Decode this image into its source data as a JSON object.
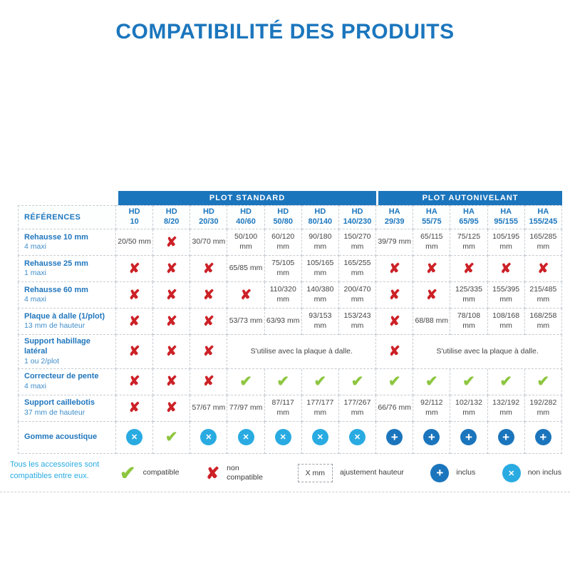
{
  "title": "COMPATIBILITÉ DES PRODUITS",
  "colors": {
    "brand_blue": "#1b75bc",
    "light_blue": "#29abe2",
    "green": "#8dc63f",
    "red": "#cc2127"
  },
  "icons": {
    "check": "✔",
    "x": "✘",
    "plus": "+",
    "circle_x": "✕"
  },
  "footnote": "Tous les accessoires sont compatibles entre eux.",
  "table": {
    "references_label": "RÉFÉRENCES",
    "groups": [
      {
        "label": "PLOT STANDARD",
        "span": 7
      },
      {
        "label": "PLOT AUTONIVELANT",
        "span": 5
      }
    ],
    "columns": [
      {
        "l1": "HD",
        "l2": "10"
      },
      {
        "l1": "HD",
        "l2": "8/20"
      },
      {
        "l1": "HD",
        "l2": "20/30"
      },
      {
        "l1": "HD",
        "l2": "40/60"
      },
      {
        "l1": "HD",
        "l2": "50/80"
      },
      {
        "l1": "HD",
        "l2": "80/140"
      },
      {
        "l1": "HD",
        "l2": "140/230"
      },
      {
        "l1": "HA",
        "l2": "29/39"
      },
      {
        "l1": "HA",
        "l2": "55/75"
      },
      {
        "l1": "HA",
        "l2": "65/95"
      },
      {
        "l1": "HA",
        "l2": "95/155"
      },
      {
        "l1": "HA",
        "l2": "155/245"
      }
    ],
    "rows": [
      {
        "name": "Rehausse 10 mm",
        "sub": "4 maxi",
        "cells": [
          {
            "type": "value",
            "text": "20/50 mm"
          },
          {
            "type": "x"
          },
          {
            "type": "value",
            "text": "30/70 mm"
          },
          {
            "type": "value",
            "text": "50/100 mm"
          },
          {
            "type": "value",
            "text": "60/120 mm"
          },
          {
            "type": "value",
            "text": "90/180 mm"
          },
          {
            "type": "value",
            "text": "150/270 mm"
          },
          {
            "type": "value",
            "text": "39/79 mm"
          },
          {
            "type": "value",
            "text": "65/115 mm"
          },
          {
            "type": "value",
            "text": "75/125 mm"
          },
          {
            "type": "value",
            "text": "105/195 mm"
          },
          {
            "type": "value",
            "text": "165/285 mm"
          }
        ]
      },
      {
        "name": "Rehausse 25 mm",
        "sub": "1 maxi",
        "cells": [
          {
            "type": "x"
          },
          {
            "type": "x"
          },
          {
            "type": "x"
          },
          {
            "type": "value",
            "text": "65/85 mm"
          },
          {
            "type": "value",
            "text": "75/105 mm"
          },
          {
            "type": "value",
            "text": "105/165 mm"
          },
          {
            "type": "value",
            "text": "165/255 mm"
          },
          {
            "type": "x"
          },
          {
            "type": "x"
          },
          {
            "type": "x"
          },
          {
            "type": "x"
          },
          {
            "type": "x"
          }
        ]
      },
      {
        "name": "Rehausse 60 mm",
        "sub": "4 maxi",
        "cells": [
          {
            "type": "x"
          },
          {
            "type": "x"
          },
          {
            "type": "x"
          },
          {
            "type": "x"
          },
          {
            "type": "value",
            "text": "110/320 mm"
          },
          {
            "type": "value",
            "text": "140/380 mm"
          },
          {
            "type": "value",
            "text": "200/470 mm"
          },
          {
            "type": "x"
          },
          {
            "type": "x"
          },
          {
            "type": "value",
            "text": "125/335 mm"
          },
          {
            "type": "value",
            "text": "155/395 mm"
          },
          {
            "type": "value",
            "text": "215/485 mm"
          }
        ]
      },
      {
        "name": "Plaque à dalle (1/plot)",
        "sub": "13 mm de hauteur",
        "cells": [
          {
            "type": "x"
          },
          {
            "type": "x"
          },
          {
            "type": "x"
          },
          {
            "type": "value",
            "text": "53/73 mm"
          },
          {
            "type": "value",
            "text": "63/93 mm"
          },
          {
            "type": "value",
            "text": "93/153 mm"
          },
          {
            "type": "value",
            "text": "153/243 mm"
          },
          {
            "type": "x"
          },
          {
            "type": "value",
            "text": "68/88 mm"
          },
          {
            "type": "value",
            "text": "78/108 mm"
          },
          {
            "type": "value",
            "text": "108/168 mm"
          },
          {
            "type": "value",
            "text": "168/258 mm"
          }
        ]
      },
      {
        "name": "Support habillage latéral",
        "sub": "1 ou 2/plot",
        "cells": [
          {
            "type": "x"
          },
          {
            "type": "x"
          },
          {
            "type": "x"
          },
          {
            "type": "span",
            "span": 4,
            "text": "S'utilise avec la plaque à dalle."
          },
          {
            "type": "x"
          },
          {
            "type": "span",
            "span": 4,
            "text": "S'utilise avec la plaque à dalle."
          }
        ]
      },
      {
        "name": "Correcteur de pente",
        "sub": "4 maxi",
        "cells": [
          {
            "type": "x"
          },
          {
            "type": "x"
          },
          {
            "type": "x"
          },
          {
            "type": "check"
          },
          {
            "type": "check"
          },
          {
            "type": "check"
          },
          {
            "type": "check"
          },
          {
            "type": "check"
          },
          {
            "type": "check"
          },
          {
            "type": "check"
          },
          {
            "type": "check"
          },
          {
            "type": "check"
          }
        ]
      },
      {
        "name": "Support caillebotis",
        "sub": "37 mm de hauteur",
        "cells": [
          {
            "type": "x"
          },
          {
            "type": "x"
          },
          {
            "type": "value",
            "text": "57/67 mm"
          },
          {
            "type": "value",
            "text": "77/97 mm"
          },
          {
            "type": "value",
            "text": "87/117 mm"
          },
          {
            "type": "value",
            "text": "177/177 mm"
          },
          {
            "type": "value",
            "text": "177/267 mm"
          },
          {
            "type": "value",
            "text": "66/76 mm"
          },
          {
            "type": "value",
            "text": "92/112 mm"
          },
          {
            "type": "value",
            "text": "102/132 mm"
          },
          {
            "type": "value",
            "text": "132/192 mm"
          },
          {
            "type": "value",
            "text": "192/282 mm"
          }
        ]
      },
      {
        "name": "Gomme acoustique",
        "sub": "",
        "cells": [
          {
            "type": "nonincl"
          },
          {
            "type": "check"
          },
          {
            "type": "nonincl"
          },
          {
            "type": "nonincl"
          },
          {
            "type": "nonincl"
          },
          {
            "type": "nonincl"
          },
          {
            "type": "nonincl"
          },
          {
            "type": "incl"
          },
          {
            "type": "incl"
          },
          {
            "type": "incl"
          },
          {
            "type": "incl"
          },
          {
            "type": "incl"
          }
        ]
      }
    ]
  },
  "legend": {
    "items": [
      {
        "icon": "check",
        "label": "compatible"
      },
      {
        "icon": "x",
        "label": "non compatible",
        "wrap": true
      },
      {
        "icon": "box",
        "box_text": "X mm",
        "label": "ajustement hauteur"
      },
      {
        "icon": "incl",
        "label": "inclus"
      },
      {
        "icon": "nonincl",
        "label": "non inclus"
      }
    ]
  }
}
